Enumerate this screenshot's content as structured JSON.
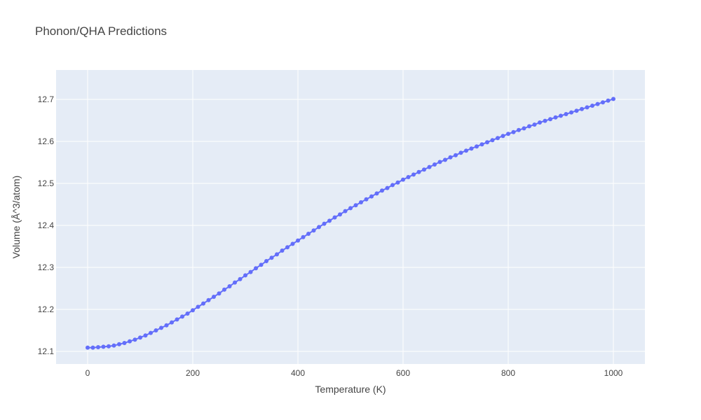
{
  "chart_data": {
    "type": "scatter",
    "mode": "lines+markers",
    "title": "Phonon/QHA Predictions",
    "xlabel": "Temperature (K)",
    "ylabel": "Volume (Å^3/atom)",
    "xlim": [
      -60,
      1060
    ],
    "ylim": [
      12.07,
      12.77
    ],
    "xticks": [
      0,
      200,
      400,
      600,
      800,
      1000
    ],
    "yticks": [
      12.1,
      12.2,
      12.3,
      12.4,
      12.5,
      12.6,
      12.7
    ],
    "grid": true,
    "legend": "none",
    "colors": {
      "series": "#636efa",
      "plot_bg": "#e5ecf6",
      "grid": "#ffffff"
    },
    "x_start": 0,
    "x_step": 10,
    "y": [
      12.109,
      12.109,
      12.11,
      12.111,
      12.112,
      12.114,
      12.117,
      12.12,
      12.124,
      12.128,
      12.133,
      12.138,
      12.144,
      12.15,
      12.156,
      12.162,
      12.169,
      12.176,
      12.183,
      12.19,
      12.198,
      12.206,
      12.214,
      12.222,
      12.23,
      12.238,
      12.247,
      12.255,
      12.264,
      12.272,
      12.281,
      12.289,
      12.298,
      12.306,
      12.315,
      12.323,
      12.331,
      12.34,
      12.348,
      12.356,
      12.364,
      12.372,
      12.38,
      12.388,
      12.396,
      12.404,
      12.411,
      12.419,
      12.426,
      12.434,
      12.441,
      12.448,
      12.455,
      12.462,
      12.469,
      12.476,
      12.483,
      12.489,
      12.496,
      12.502,
      12.509,
      12.515,
      12.521,
      12.527,
      12.533,
      12.539,
      12.545,
      12.551,
      12.556,
      12.562,
      12.567,
      12.573,
      12.578,
      12.583,
      12.588,
      12.593,
      12.598,
      12.603,
      12.608,
      12.613,
      12.618,
      12.622,
      12.627,
      12.631,
      12.636,
      12.64,
      12.645,
      12.649,
      12.653,
      12.657,
      12.661,
      12.665,
      12.669,
      12.673,
      12.677,
      12.681,
      12.685,
      12.689,
      12.693,
      12.697,
      12.701
    ]
  }
}
